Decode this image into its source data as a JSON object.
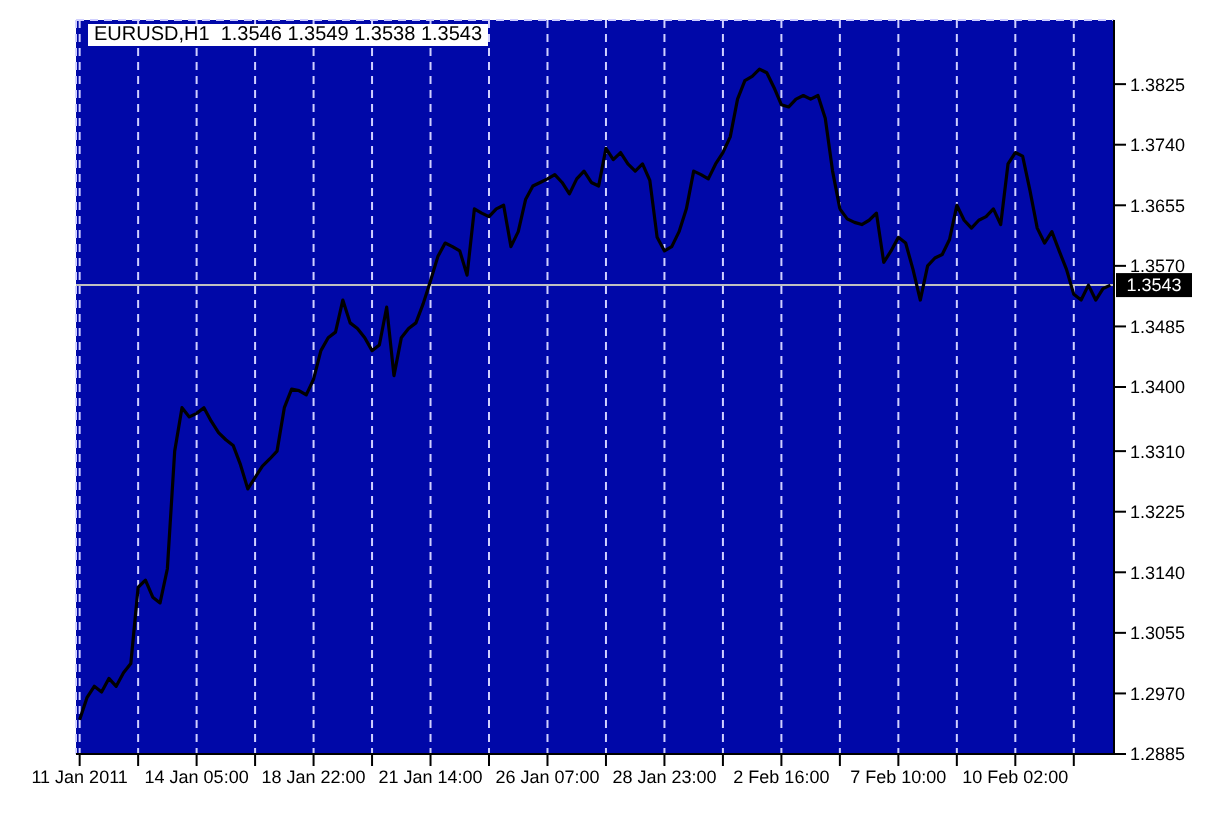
{
  "chart_data": {
    "type": "line",
    "title": "EURUSD,H1  1.3546 1.3549 1.3538 1.3543",
    "categories": [
      "11 Jan 2011",
      null,
      null,
      null,
      null,
      null,
      null,
      null,
      null,
      null,
      null,
      null,
      null,
      null,
      null,
      null,
      "14 Jan 05:00",
      null,
      null,
      null,
      null,
      null,
      null,
      null,
      null,
      null,
      null,
      null,
      null,
      null,
      null,
      null,
      "18 Jan 22:00",
      null,
      null,
      null,
      null,
      null,
      null,
      null,
      null,
      null,
      null,
      null,
      null,
      null,
      null,
      null,
      "21 Jan 14:00",
      null,
      null,
      null,
      null,
      null,
      null,
      null,
      null,
      null,
      null,
      null,
      null,
      null,
      null,
      null,
      "26 Jan 07:00",
      null,
      null,
      null,
      null,
      null,
      null,
      null,
      null,
      null,
      null,
      null,
      null,
      null,
      null,
      null,
      "28 Jan 23:00",
      null,
      null,
      null,
      null,
      null,
      null,
      null,
      null,
      null,
      null,
      null,
      null,
      null,
      null,
      null,
      "2 Feb 16:00",
      null,
      null,
      null,
      null,
      null,
      null,
      null,
      null,
      null,
      null,
      null,
      null,
      null,
      null,
      null,
      "7 Feb 10:00",
      null,
      null,
      null,
      null,
      null,
      null,
      null,
      null,
      null,
      null,
      null,
      null,
      null,
      null,
      null,
      "10 Feb 02:00",
      null,
      null,
      null,
      null,
      null,
      null,
      null,
      null,
      null,
      null,
      null,
      null,
      null
    ],
    "series": [
      {
        "color": "#000000",
        "values": [
          1.2933,
          1.2964,
          1.298,
          1.2972,
          1.2991,
          1.298,
          1.2999,
          1.3012,
          1.3119,
          1.3129,
          1.3105,
          1.3097,
          1.3145,
          1.331,
          1.3371,
          1.3358,
          1.3363,
          1.3371,
          1.3352,
          1.3336,
          1.3326,
          1.3318,
          1.3291,
          1.3257,
          1.3273,
          1.3289,
          1.3299,
          1.331,
          1.3371,
          1.3397,
          1.3395,
          1.3389,
          1.3411,
          1.3451,
          1.3469,
          1.3477,
          1.3522,
          1.349,
          1.3482,
          1.3469,
          1.3451,
          1.3459,
          1.3512,
          1.3416,
          1.3469,
          1.3482,
          1.349,
          1.3517,
          1.3549,
          1.3583,
          1.3602,
          1.3597,
          1.3591,
          1.3557,
          1.365,
          1.3644,
          1.3639,
          1.365,
          1.3655,
          1.3597,
          1.3618,
          1.3663,
          1.3682,
          1.3687,
          1.3692,
          1.3698,
          1.3687,
          1.3671,
          1.3692,
          1.3703,
          1.3687,
          1.3682,
          1.3735,
          1.3719,
          1.3729,
          1.3713,
          1.3703,
          1.3713,
          1.369,
          1.361,
          1.3591,
          1.3597,
          1.3618,
          1.365,
          1.3703,
          1.3698,
          1.3692,
          1.3713,
          1.3729,
          1.3751,
          1.3804,
          1.383,
          1.3836,
          1.3846,
          1.3841,
          1.382,
          1.3796,
          1.3793,
          1.3804,
          1.3809,
          1.3804,
          1.3809,
          1.3777,
          1.3703,
          1.365,
          1.3636,
          1.3631,
          1.3628,
          1.3634,
          1.3644,
          1.3575,
          1.3591,
          1.361,
          1.3602,
          1.3565,
          1.3522,
          1.357,
          1.3581,
          1.3586,
          1.3607,
          1.3655,
          1.3634,
          1.3623,
          1.3634,
          1.3639,
          1.365,
          1.3628,
          1.3713,
          1.3729,
          1.3724,
          1.3676,
          1.3623,
          1.3602,
          1.3618,
          1.3591,
          1.3565,
          1.353,
          1.3522,
          1.3543,
          1.3522,
          1.3538,
          1.3543
        ]
      }
    ],
    "ylim": [
      1.2885,
      1.3915
    ],
    "yticks": [
      1.2885,
      {
        "value": 1.297,
        "label": "1.2970"
      },
      1.3055,
      {
        "value": 1.314,
        "label": "1.3140"
      },
      1.3225,
      {
        "value": 1.331,
        "label": "1.3310"
      },
      {
        "value": 1.34,
        "label": "1.3400"
      },
      1.3485,
      {
        "value": 1.357,
        "label": "1.3570"
      },
      1.3655,
      {
        "value": 1.374,
        "label": "1.3740"
      },
      1.3825
    ],
    "ref_lines": [
      {
        "axis": "y",
        "value": 1.3543,
        "label": "1.3543",
        "color": "#c0c0c0"
      }
    ],
    "grid": true,
    "line_style": "solid"
  }
}
